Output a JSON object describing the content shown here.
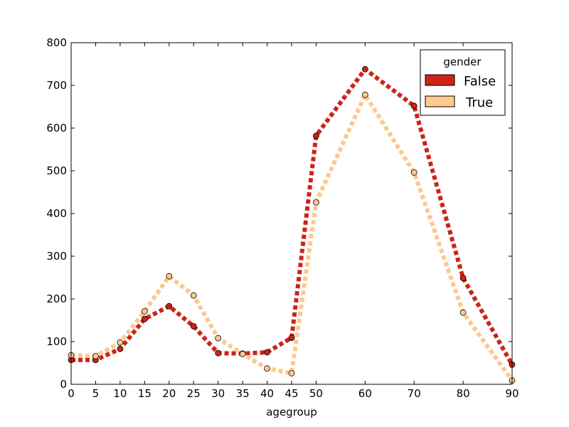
{
  "chart_data": {
    "type": "line",
    "title": "",
    "xlabel": "agegroup",
    "ylabel": "",
    "x": [
      0,
      5,
      10,
      15,
      20,
      25,
      30,
      35,
      40,
      45,
      50,
      60,
      70,
      80,
      90
    ],
    "x_ticks": [
      0,
      5,
      10,
      15,
      20,
      25,
      30,
      35,
      40,
      45,
      50,
      60,
      70,
      80,
      90
    ],
    "y_ticks": [
      0,
      100,
      200,
      300,
      400,
      500,
      600,
      700,
      800
    ],
    "ylim": [
      0,
      800
    ],
    "grid": false,
    "legend": {
      "title": "gender",
      "placement": "top-right"
    },
    "series": [
      {
        "name": "False",
        "color": "#cc2418",
        "values": [
          57,
          57,
          83,
          153,
          183,
          136,
          73,
          72,
          75,
          109,
          582,
          738,
          652,
          249,
          46
        ]
      },
      {
        "name": "True",
        "color": "#fec88f",
        "values": [
          68,
          66,
          98,
          171,
          253,
          208,
          108,
          71,
          37,
          26,
          426,
          678,
          496,
          168,
          9
        ]
      }
    ]
  }
}
